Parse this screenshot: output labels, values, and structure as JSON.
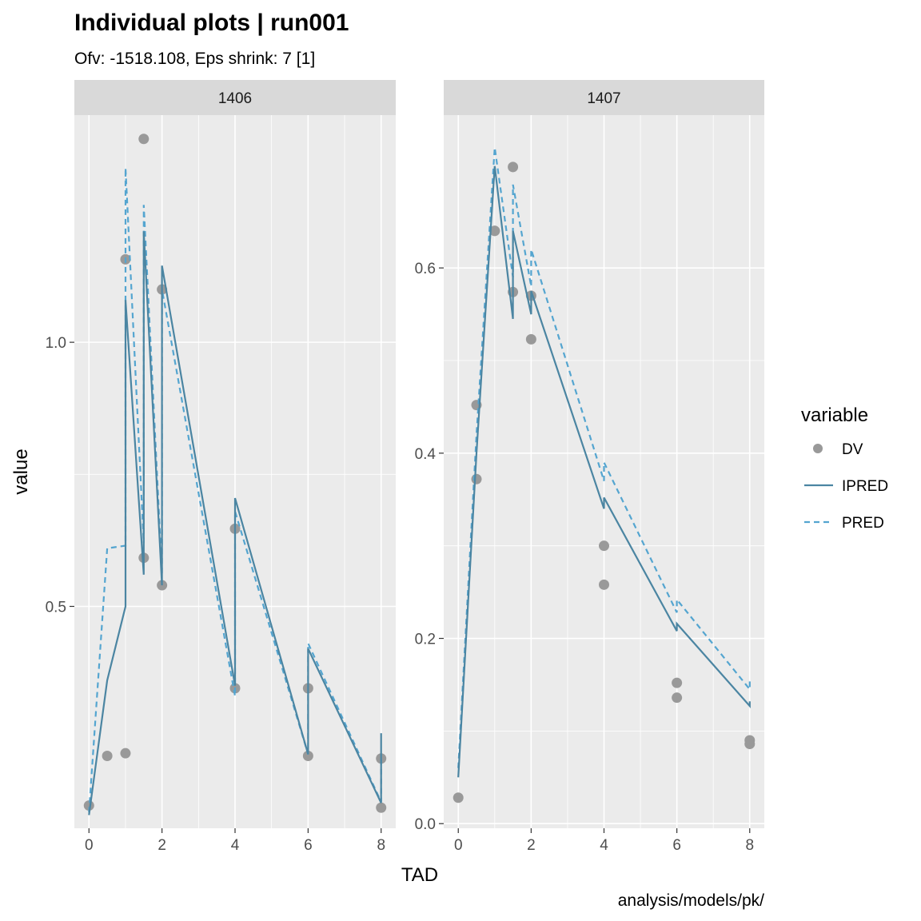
{
  "title": "Individual plots | run001",
  "subtitle": "Ofv: -1518.108, Eps shrink: 7 [1]",
  "xlabel": "TAD",
  "ylabel": "value",
  "caption": "analysis/models/pk/",
  "legend": {
    "title": "variable",
    "items": [
      {
        "label": "DV",
        "kind": "point",
        "color": "#999999"
      },
      {
        "label": "IPRED",
        "kind": "solid",
        "color": "#4b85a2"
      },
      {
        "label": "PRED",
        "kind": "dashed",
        "color": "#54a5d0"
      }
    ]
  },
  "colors": {
    "panel_bg": "#ebebeb",
    "strip_bg": "#d9d9d9",
    "grid": "#ffffff",
    "dv": "#999999",
    "ipred": "#4b85a2",
    "pred": "#54a5d0"
  },
  "chart_data": [
    {
      "type": "line",
      "panel": "1406",
      "xlim": [
        -0.4,
        8.4
      ],
      "ylim": [
        0.08,
        1.43
      ],
      "xticks": [
        0,
        2,
        4,
        6,
        8
      ],
      "yticks": [
        0.5,
        1.0
      ],
      "ytick_labels": [
        "0.5",
        "1.0"
      ],
      "dv": [
        [
          0,
          0.123
        ],
        [
          0.5,
          0.217
        ],
        [
          1,
          0.222
        ],
        [
          1.5,
          1.385
        ],
        [
          1,
          1.157
        ],
        [
          1.5,
          0.592
        ],
        [
          2,
          1.1
        ],
        [
          2,
          0.54
        ],
        [
          4,
          0.647
        ],
        [
          4,
          0.345
        ],
        [
          6,
          0.345
        ],
        [
          6,
          0.217
        ],
        [
          8,
          0.212
        ],
        [
          8,
          0.119
        ]
      ],
      "ipred": [
        [
          0,
          0.105
        ],
        [
          0.5,
          0.36
        ],
        [
          1,
          0.5
        ],
        [
          1,
          1.08
        ],
        [
          1.5,
          0.56
        ],
        [
          1.5,
          1.21
        ],
        [
          2,
          0.54
        ],
        [
          2,
          1.145
        ],
        [
          4,
          0.35
        ],
        [
          4,
          0.705
        ],
        [
          6,
          0.22
        ],
        [
          6,
          0.42
        ],
        [
          8,
          0.128
        ],
        [
          8,
          0.26
        ]
      ],
      "pred": [
        [
          0,
          0.11
        ],
        [
          0.5,
          0.61
        ],
        [
          1,
          0.615
        ],
        [
          1,
          1.33
        ],
        [
          1.5,
          0.62
        ],
        [
          1.5,
          1.26
        ],
        [
          2,
          0.56
        ],
        [
          2,
          1.1
        ],
        [
          4,
          0.33
        ],
        [
          4,
          0.68
        ],
        [
          6,
          0.22
        ],
        [
          6,
          0.43
        ],
        [
          8,
          0.13
        ],
        [
          8,
          0.22
        ]
      ]
    },
    {
      "type": "line",
      "panel": "1407",
      "xlim": [
        -0.4,
        8.4
      ],
      "ylim": [
        -0.005,
        0.765
      ],
      "xticks": [
        0,
        2,
        4,
        6,
        8
      ],
      "yticks": [
        0.0,
        0.2,
        0.4,
        0.6
      ],
      "ytick_labels": [
        "0.0",
        "0.2",
        "0.4",
        "0.6"
      ],
      "dv": [
        [
          0,
          0.028
        ],
        [
          0.5,
          0.372
        ],
        [
          0.5,
          0.452
        ],
        [
          1,
          0.64
        ],
        [
          1,
          0.64
        ],
        [
          1.5,
          0.709
        ],
        [
          1.5,
          0.574
        ],
        [
          2,
          0.57
        ],
        [
          2,
          0.523
        ],
        [
          4,
          0.3
        ],
        [
          4,
          0.258
        ],
        [
          6,
          0.152
        ],
        [
          6,
          0.136
        ],
        [
          8,
          0.09
        ],
        [
          8,
          0.086
        ]
      ],
      "ipred": [
        [
          0,
          0.05
        ],
        [
          0.5,
          0.4
        ],
        [
          1,
          0.71
        ],
        [
          1.5,
          0.545
        ],
        [
          1.5,
          0.64
        ],
        [
          2,
          0.55
        ],
        [
          2,
          0.575
        ],
        [
          4,
          0.34
        ],
        [
          4,
          0.352
        ],
        [
          6,
          0.208
        ],
        [
          6,
          0.216
        ],
        [
          8,
          0.127
        ],
        [
          8,
          0.132
        ]
      ],
      "pred": [
        [
          0,
          0.06
        ],
        [
          0.5,
          0.42
        ],
        [
          1,
          0.73
        ],
        [
          1.5,
          0.59
        ],
        [
          1.5,
          0.69
        ],
        [
          2,
          0.58
        ],
        [
          2,
          0.62
        ],
        [
          4,
          0.37
        ],
        [
          4,
          0.39
        ],
        [
          6,
          0.228
        ],
        [
          6,
          0.242
        ],
        [
          8,
          0.145
        ],
        [
          8,
          0.155
        ]
      ]
    }
  ]
}
